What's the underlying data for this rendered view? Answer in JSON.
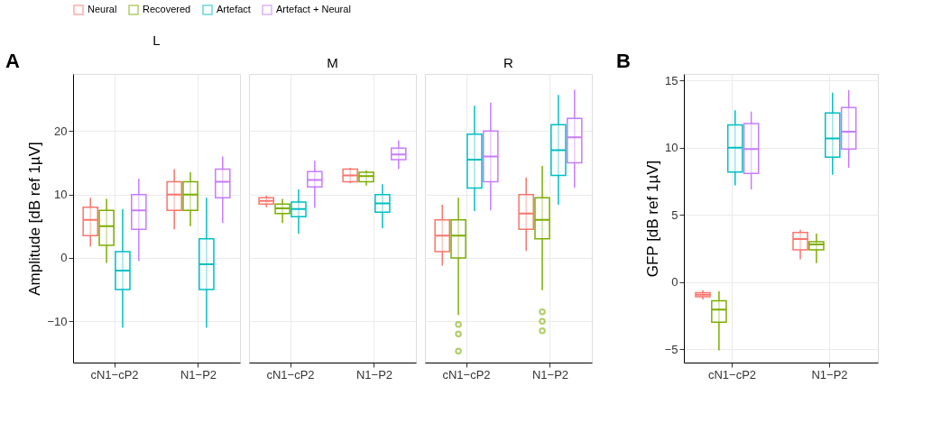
{
  "chart_data": [
    {
      "type": "box",
      "title": "L",
      "annotations": [
        "A"
      ],
      "ylabel": "Amplitude [dB ref 1µV]",
      "categories": [
        "cN1−cP2",
        "N1−P2"
      ],
      "ylim": [
        -16.5,
        29
      ],
      "yticks": [
        -10,
        0,
        10,
        20
      ],
      "grid": true,
      "legend": "top",
      "series": [
        {
          "name": "Neural",
          "color": "#f8766d",
          "boxes": [
            {
              "low": 1.8,
              "q1": 3.5,
              "median": 6,
              "q3": 8,
              "high": 9.5
            },
            {
              "low": 4.5,
              "q1": 7.5,
              "median": 10,
              "q3": 12,
              "high": 14
            }
          ]
        },
        {
          "name": "Recovered",
          "color": "#7cae00",
          "boxes": [
            {
              "low": -0.8,
              "q1": 2,
              "median": 5,
              "q3": 7.5,
              "high": 9.3
            },
            {
              "low": 5,
              "q1": 7.5,
              "median": 10,
              "q3": 12,
              "high": 13.5
            }
          ]
        },
        {
          "name": "Artefact",
          "color": "#00bfc4",
          "boxes": [
            {
              "low": -11,
              "q1": -5,
              "median": -2,
              "q3": 1,
              "high": 7.7
            },
            {
              "low": -11,
              "q1": -5,
              "median": -1,
              "q3": 3,
              "high": 9.5
            }
          ]
        },
        {
          "name": "Artefact + Neural",
          "color": "#c77cff",
          "boxes": [
            {
              "low": -0.5,
              "q1": 4.5,
              "median": 7.5,
              "q3": 10,
              "high": 12.5
            },
            {
              "low": 5.5,
              "q1": 9.5,
              "median": 12,
              "q3": 14,
              "high": 16
            }
          ]
        }
      ]
    },
    {
      "type": "box",
      "title": "M",
      "categories": [
        "cN1−cP2",
        "N1−P2"
      ],
      "ylim": [
        -16.5,
        29
      ],
      "yticks": [
        -10,
        0,
        10,
        20
      ],
      "tick_labels": "x",
      "grid": true,
      "legend": "top",
      "series": [
        {
          "name": "Neural",
          "color": "#f8766d",
          "boxes": [
            {
              "low": 8,
              "q1": 8.5,
              "median": 9,
              "q3": 9.5,
              "high": 9.8
            },
            {
              "low": 11.8,
              "q1": 12,
              "median": 13,
              "q3": 14,
              "high": 14.2
            }
          ]
        },
        {
          "name": "Recovered",
          "color": "#7cae00",
          "boxes": [
            {
              "low": 5.5,
              "q1": 7,
              "median": 7.8,
              "q3": 8.5,
              "high": 9.3
            },
            {
              "low": 11.4,
              "q1": 12,
              "median": 12.9,
              "q3": 13.5,
              "high": 13.8
            }
          ]
        },
        {
          "name": "Artefact",
          "color": "#00bfc4",
          "boxes": [
            {
              "low": 3.8,
              "q1": 6.5,
              "median": 7.7,
              "q3": 8.8,
              "high": 10.8
            },
            {
              "low": 4.7,
              "q1": 7.2,
              "median": 8.6,
              "q3": 10,
              "high": 11.6
            }
          ]
        },
        {
          "name": "Artefact + Neural",
          "color": "#c77cff",
          "boxes": [
            {
              "low": 7.9,
              "q1": 11.2,
              "median": 12.3,
              "q3": 13.6,
              "high": 15.3
            },
            {
              "low": 14,
              "q1": 15.5,
              "median": 16.3,
              "q3": 17.3,
              "high": 18.5
            }
          ]
        }
      ]
    },
    {
      "type": "box",
      "title": "R",
      "categories": [
        "cN1−cP2",
        "N1−P2"
      ],
      "ylim": [
        -16.5,
        29
      ],
      "yticks": [
        -10,
        0,
        10,
        20
      ],
      "tick_labels": "x",
      "grid": true,
      "legend": "top",
      "series": [
        {
          "name": "Neural",
          "color": "#f8766d",
          "boxes": [
            {
              "low": -1.2,
              "q1": 1,
              "median": 3.5,
              "q3": 6,
              "high": 8.4
            },
            {
              "low": 1.1,
              "q1": 4.5,
              "median": 7,
              "q3": 10,
              "high": 12.7
            }
          ]
        },
        {
          "name": "Recovered",
          "color": "#7cae00",
          "boxes": [
            {
              "low": -9,
              "q1": 0,
              "median": 3.5,
              "q3": 6,
              "high": 9.5,
              "outliers": [
                -10.5,
                -12,
                -14.7
              ]
            },
            {
              "low": -5.1,
              "q1": 3,
              "median": 6,
              "q3": 9.5,
              "high": 14.5,
              "outliers": [
                -8.5,
                -10,
                -11.5
              ]
            }
          ]
        },
        {
          "name": "Artefact",
          "color": "#00bfc4",
          "boxes": [
            {
              "low": 7.4,
              "q1": 11,
              "median": 15.5,
              "q3": 19.5,
              "high": 24
            },
            {
              "low": 8.4,
              "q1": 13,
              "median": 17,
              "q3": 21,
              "high": 25.7
            }
          ]
        },
        {
          "name": "Artefact + Neural",
          "color": "#c77cff",
          "boxes": [
            {
              "low": 7.5,
              "q1": 12,
              "median": 16,
              "q3": 20,
              "high": 24.5
            },
            {
              "low": 11.1,
              "q1": 15,
              "median": 19,
              "q3": 22,
              "high": 26.5
            }
          ]
        }
      ]
    },
    {
      "type": "box",
      "annotations": [
        "B"
      ],
      "ylabel": "GFP [dB ref 1µV]",
      "categories": [
        "cN1−cP2",
        "N1−P2"
      ],
      "ylim": [
        -6,
        15.5
      ],
      "yticks": [
        -5,
        0,
        5,
        10,
        15
      ],
      "grid": true,
      "legend": "top",
      "series": [
        {
          "name": "Neural",
          "color": "#f8766d",
          "boxes": [
            {
              "low": -1.3,
              "q1": -1.1,
              "median": -0.95,
              "q3": -0.8,
              "high": -0.6
            },
            {
              "low": 1.7,
              "q1": 2.4,
              "median": 3.2,
              "q3": 3.7,
              "high": 3.9
            }
          ]
        },
        {
          "name": "Recovered",
          "color": "#7cae00",
          "boxes": [
            {
              "low": -5.1,
              "q1": -3.0,
              "median": -2.05,
              "q3": -1.4,
              "high": -0.7
            },
            {
              "low": 1.4,
              "q1": 2.4,
              "median": 2.8,
              "q3": 3.0,
              "high": 3.6
            }
          ]
        },
        {
          "name": "Artefact",
          "color": "#00bfc4",
          "boxes": [
            {
              "low": 7.2,
              "q1": 8.2,
              "median": 10,
              "q3": 11.7,
              "high": 12.8
            },
            {
              "low": 8.0,
              "q1": 9.3,
              "median": 10.7,
              "q3": 12.6,
              "high": 14.1
            }
          ]
        },
        {
          "name": "Artefact + Neural",
          "color": "#c77cff",
          "boxes": [
            {
              "low": 6.9,
              "q1": 8.1,
              "median": 9.9,
              "q3": 11.8,
              "high": 12.7
            },
            {
              "low": 8.5,
              "q1": 9.9,
              "median": 11.2,
              "q3": 13.0,
              "high": 14.3
            }
          ]
        }
      ]
    }
  ]
}
